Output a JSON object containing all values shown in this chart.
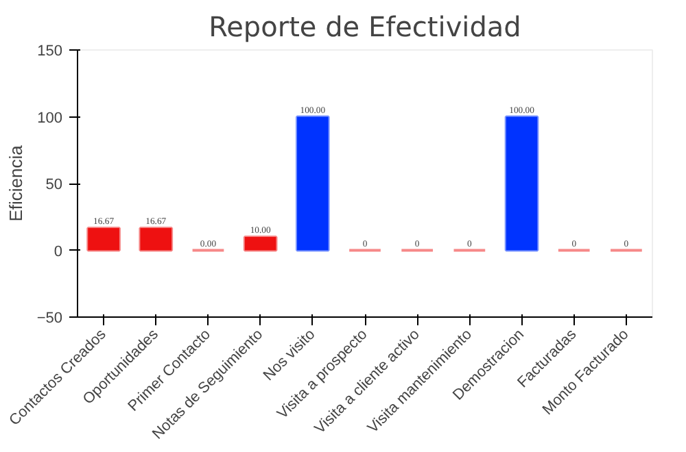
{
  "chart_data": {
    "type": "bar",
    "title": "Reporte de Efectividad",
    "ylabel": "Eficiencia",
    "categories": [
      "Contactos Creados",
      "Oportunidades",
      "Primer Contacto",
      "Notas de Seguimiento",
      "Nos visito",
      "Visita a prospecto",
      "Visita a cliente activo",
      "Visita mantenimiento",
      "Demostracion",
      "Facturadas",
      "Monto Facturado"
    ],
    "values": [
      16.67,
      16.67,
      0,
      10,
      100,
      0,
      0,
      0,
      100,
      0,
      0
    ],
    "value_labels": [
      "16.67",
      "16.67",
      "0.00",
      "10.00",
      "100.00",
      "0",
      "0",
      "0",
      "100.00",
      "0",
      "0"
    ],
    "colors": [
      "#ee1111",
      "#ee1111",
      "#ee1111",
      "#ee1111",
      "#0033ff",
      "#ee1111",
      "#ee1111",
      "#ee1111",
      "#0033ff",
      "#ee1111",
      "#ee1111"
    ],
    "ylim": [
      -50,
      150
    ],
    "yticks": [
      -50,
      0,
      50,
      100,
      150
    ],
    "grid": false
  }
}
